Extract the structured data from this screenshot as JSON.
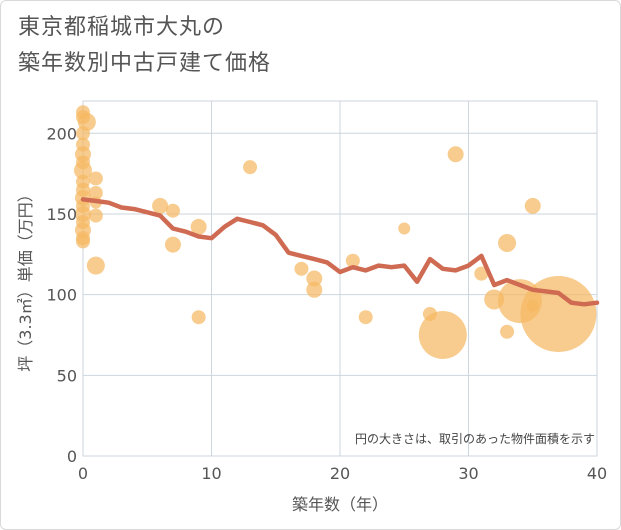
{
  "title_lines": [
    "東京都稲城市大丸の",
    "築年数別中古戸建て価格"
  ],
  "chart_data": {
    "type": "scatter",
    "xlabel": "築年数（年）",
    "ylabel": "坪（3.3㎡）単価（万円）",
    "xlim": [
      0,
      40
    ],
    "ylim": [
      0,
      220
    ],
    "x_ticks": [
      0,
      10,
      20,
      30,
      40
    ],
    "y_ticks": [
      0,
      50,
      100,
      150,
      200
    ],
    "grid": true,
    "annotation": "円の大きさは、取引のあった物件面積を示す",
    "colors": {
      "bubble": "#f5b962",
      "line": "#cf6b52",
      "grid": "#ccd6dd"
    },
    "bubbles": [
      {
        "x": 0,
        "y": 213,
        "r": 7
      },
      {
        "x": 0,
        "y": 210,
        "r": 7
      },
      {
        "x": 0.3,
        "y": 207,
        "r": 9
      },
      {
        "x": 0,
        "y": 200,
        "r": 7
      },
      {
        "x": 0,
        "y": 193,
        "r": 7
      },
      {
        "x": 0,
        "y": 187,
        "r": 8
      },
      {
        "x": 0,
        "y": 182,
        "r": 7
      },
      {
        "x": 0,
        "y": 177,
        "r": 9
      },
      {
        "x": 0,
        "y": 170,
        "r": 7
      },
      {
        "x": 0,
        "y": 165,
        "r": 7
      },
      {
        "x": 0,
        "y": 160,
        "r": 8
      },
      {
        "x": 0,
        "y": 155,
        "r": 7
      },
      {
        "x": 0,
        "y": 150,
        "r": 8
      },
      {
        "x": 0,
        "y": 145,
        "r": 7
      },
      {
        "x": 0,
        "y": 140,
        "r": 8
      },
      {
        "x": 0,
        "y": 135,
        "r": 7
      },
      {
        "x": 0,
        "y": 133,
        "r": 7
      },
      {
        "x": 1,
        "y": 172,
        "r": 7
      },
      {
        "x": 1,
        "y": 163,
        "r": 7
      },
      {
        "x": 1,
        "y": 157,
        "r": 6
      },
      {
        "x": 1,
        "y": 149,
        "r": 7
      },
      {
        "x": 1,
        "y": 118,
        "r": 9
      },
      {
        "x": 6,
        "y": 155,
        "r": 8
      },
      {
        "x": 7,
        "y": 152,
        "r": 7
      },
      {
        "x": 7,
        "y": 131,
        "r": 8
      },
      {
        "x": 9,
        "y": 142,
        "r": 8
      },
      {
        "x": 9,
        "y": 86,
        "r": 7
      },
      {
        "x": 13,
        "y": 179,
        "r": 7
      },
      {
        "x": 17,
        "y": 116,
        "r": 7
      },
      {
        "x": 18,
        "y": 110,
        "r": 8
      },
      {
        "x": 18,
        "y": 103,
        "r": 8
      },
      {
        "x": 21,
        "y": 121,
        "r": 7
      },
      {
        "x": 22,
        "y": 86,
        "r": 7
      },
      {
        "x": 25,
        "y": 141,
        "r": 6
      },
      {
        "x": 27,
        "y": 88,
        "r": 7
      },
      {
        "x": 28,
        "y": 75,
        "r": 24
      },
      {
        "x": 29,
        "y": 187,
        "r": 8
      },
      {
        "x": 31,
        "y": 113,
        "r": 7
      },
      {
        "x": 32,
        "y": 97,
        "r": 10
      },
      {
        "x": 33,
        "y": 132,
        "r": 9
      },
      {
        "x": 33,
        "y": 77,
        "r": 7
      },
      {
        "x": 34,
        "y": 96,
        "r": 22
      },
      {
        "x": 35,
        "y": 155,
        "r": 8
      },
      {
        "x": 35,
        "y": 93,
        "r": 6
      },
      {
        "x": 37,
        "y": 88,
        "r": 38
      }
    ],
    "trend": {
      "x": [
        0,
        1,
        2,
        3,
        4,
        5,
        6,
        7,
        8,
        9,
        10,
        11,
        12,
        13,
        14,
        15,
        16,
        17,
        18,
        19,
        20,
        21,
        22,
        23,
        24,
        25,
        26,
        27,
        28,
        29,
        30,
        31,
        32,
        33,
        34,
        35,
        36,
        37,
        38,
        39,
        40
      ],
      "y": [
        159,
        158,
        157,
        154,
        153,
        151,
        149,
        141,
        139,
        136,
        135,
        142,
        147,
        145,
        143,
        137,
        126,
        124,
        122,
        120,
        114,
        117,
        115,
        118,
        117,
        118,
        108,
        122,
        116,
        115,
        118,
        124,
        106,
        109,
        106,
        103,
        102,
        101,
        95,
        94,
        95
      ]
    }
  }
}
